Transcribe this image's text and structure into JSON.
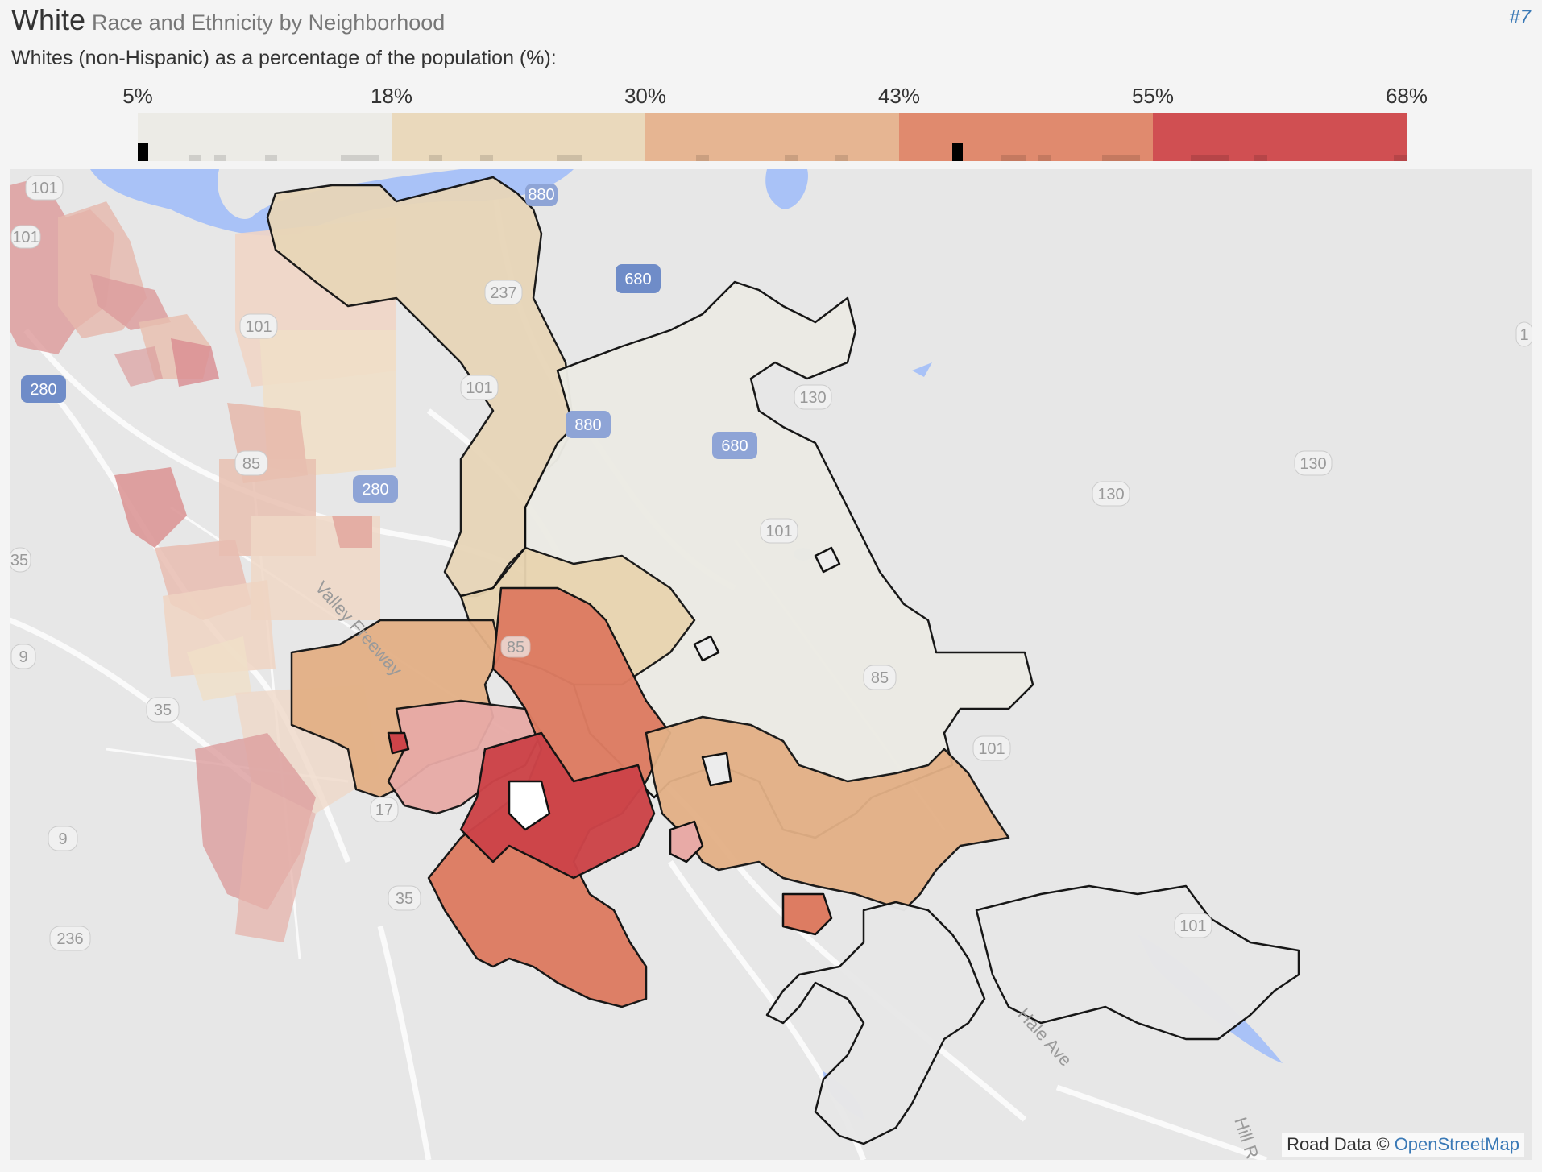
{
  "header": {
    "title": "White",
    "subtitle": "Race and Ethnicity by Neighborhood",
    "map_index": "#7"
  },
  "legend": {
    "label": "Whites (non-Hispanic) as a percentage of the population (%):",
    "ticks": [
      "5%",
      "18%",
      "30%",
      "43%",
      "55%",
      "68%"
    ],
    "colors": [
      "#ecebe6",
      "#ead9bc",
      "#e6b592",
      "#e08a6e",
      "#d04f52"
    ],
    "highlight_marks": [
      "low",
      "high"
    ]
  },
  "map": {
    "highway_shields": [
      "101",
      "680",
      "237",
      "880",
      "101",
      "880",
      "680",
      "130",
      "280",
      "101",
      "130",
      "130",
      "101",
      "85",
      "85",
      "101",
      "280",
      "35",
      "9",
      "35",
      "17",
      "9",
      "35",
      "236",
      "101",
      "101",
      "1",
      "85",
      "101"
    ],
    "road_labels": [
      "Valley Freeway",
      "Hale Ave",
      "Hill R"
    ],
    "water_color": "#a9c2f7",
    "attribution_prefix": "Road Data © ",
    "attribution_link": "OpenStreetMap"
  }
}
